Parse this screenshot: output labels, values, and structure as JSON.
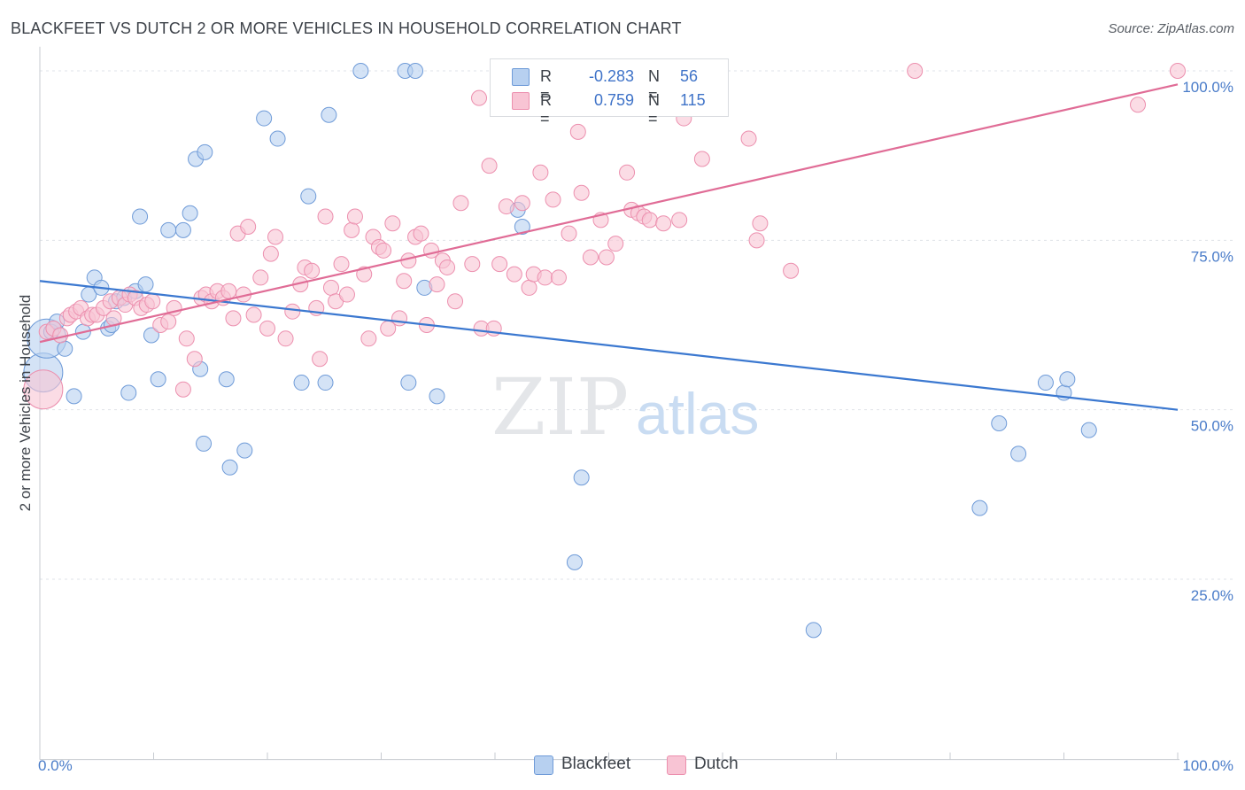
{
  "header": {
    "title": "BLACKFEET VS DUTCH 2 OR MORE VEHICLES IN HOUSEHOLD CORRELATION CHART",
    "source": "Source: ZipAtlas.com"
  },
  "watermark": {
    "zip": "ZIP",
    "atlas": "atlas"
  },
  "legend": {
    "rows": [
      {
        "r_label": "R =",
        "r_value": "-0.283",
        "n_label": "N =",
        "n_value": "56"
      },
      {
        "r_label": "R =",
        "r_value": "0.759",
        "n_label": "N =",
        "n_value": "115"
      }
    ]
  },
  "bottom_legend": {
    "items": [
      "Blackfeet",
      "Dutch"
    ]
  },
  "colors": {
    "blackfeet_fill": "#b7d0f0",
    "blackfeet_stroke": "#6f9bd8",
    "blackfeet_line": "#3b78d0",
    "dutch_fill": "#f8c4d4",
    "dutch_stroke": "#ec8fae",
    "dutch_line": "#e06c96",
    "tick_label": "#4a7cc9",
    "grid": "#dfe3e8"
  },
  "chart_data": {
    "type": "scatter",
    "title": "BLACKFEET VS DUTCH 2 OR MORE VEHICLES IN HOUSEHOLD CORRELATION CHART",
    "xlabel": "",
    "ylabel": "2 or more Vehicles in Household",
    "xlim": [
      0,
      100
    ],
    "ylim": [
      1,
      102
    ],
    "x_tick_labels": [
      "0.0%",
      "100.0%"
    ],
    "y_ticks": [
      25,
      50,
      75,
      100
    ],
    "y_tick_labels": [
      "25.0%",
      "50.0%",
      "75.0%",
      "100.0%"
    ],
    "grid": true,
    "legend_position": "top-center",
    "series": [
      {
        "name": "Blackfeet",
        "R": -0.283,
        "N": 56,
        "trend": {
          "x": [
            0,
            100
          ],
          "y": [
            69.0,
            50.0
          ]
        },
        "points": [
          [
            0.3,
            55.5,
            22
          ],
          [
            0.6,
            60.5,
            14
          ],
          [
            1.0,
            61.5,
            11
          ],
          [
            1.5,
            63.0,
            11
          ],
          [
            2.2,
            59.0,
            11
          ],
          [
            3.0,
            52.0,
            11
          ],
          [
            3.8,
            61.5,
            11
          ],
          [
            4.3,
            67.0,
            11
          ],
          [
            4.8,
            69.5,
            11
          ],
          [
            5.4,
            68.0,
            11
          ],
          [
            6.0,
            62.0,
            11
          ],
          [
            6.3,
            62.5,
            11
          ],
          [
            6.7,
            66.0,
            11
          ],
          [
            7.4,
            66.5,
            11
          ],
          [
            7.8,
            52.5,
            11
          ],
          [
            8.4,
            67.5,
            11
          ],
          [
            8.8,
            78.5,
            11
          ],
          [
            9.3,
            68.5,
            11
          ],
          [
            9.8,
            61.0,
            11
          ],
          [
            10.4,
            54.5,
            11
          ],
          [
            11.3,
            76.5,
            11
          ],
          [
            12.6,
            76.5,
            11
          ],
          [
            13.2,
            79.0,
            11
          ],
          [
            13.7,
            87.0,
            11
          ],
          [
            14.1,
            56.0,
            11
          ],
          [
            14.5,
            88.0,
            11
          ],
          [
            14.4,
            45.0,
            11
          ],
          [
            16.4,
            54.5,
            11
          ],
          [
            16.7,
            41.5,
            11
          ],
          [
            18.0,
            44.0,
            11
          ],
          [
            19.7,
            93.0,
            11
          ],
          [
            20.9,
            90.0,
            11
          ],
          [
            23.0,
            54.0,
            11
          ],
          [
            23.6,
            81.5,
            11
          ],
          [
            25.1,
            54.0,
            11
          ],
          [
            25.4,
            93.5,
            11
          ],
          [
            28.2,
            100.0,
            11
          ],
          [
            32.1,
            100.0,
            11
          ],
          [
            32.4,
            54.0,
            11
          ],
          [
            33.0,
            100.0,
            11
          ],
          [
            33.8,
            68.0,
            11
          ],
          [
            34.9,
            52.0,
            11
          ],
          [
            42.0,
            79.5,
            11
          ],
          [
            42.4,
            77.0,
            11
          ],
          [
            47.0,
            27.5,
            11
          ],
          [
            47.6,
            40.0,
            11
          ],
          [
            82.6,
            35.5,
            11
          ],
          [
            84.3,
            48.0,
            11
          ],
          [
            86.0,
            43.5,
            11
          ],
          [
            88.4,
            54.0,
            11
          ],
          [
            90.0,
            52.5,
            11
          ],
          [
            90.3,
            54.5,
            11
          ],
          [
            92.2,
            47.0,
            11
          ],
          [
            68.0,
            17.5,
            11
          ]
        ]
      },
      {
        "name": "Dutch",
        "R": 0.759,
        "N": 115,
        "trend": {
          "x": [
            0,
            100
          ],
          "y": [
            60.0,
            98.0
          ]
        },
        "points": [
          [
            0.3,
            53.0,
            22
          ],
          [
            0.6,
            61.5,
            11
          ],
          [
            1.2,
            62.0,
            11
          ],
          [
            1.8,
            61.0,
            11
          ],
          [
            2.4,
            63.5,
            11
          ],
          [
            2.7,
            64.0,
            11
          ],
          [
            3.2,
            64.5,
            11
          ],
          [
            3.6,
            65.0,
            11
          ],
          [
            4.2,
            63.5,
            11
          ],
          [
            4.6,
            64.0,
            11
          ],
          [
            5.0,
            64.0,
            11
          ],
          [
            5.6,
            65.0,
            11
          ],
          [
            6.2,
            66.0,
            11
          ],
          [
            6.5,
            63.5,
            11
          ],
          [
            7.0,
            66.5,
            11
          ],
          [
            7.5,
            65.5,
            11
          ],
          [
            7.9,
            67.0,
            11
          ],
          [
            8.4,
            66.5,
            11
          ],
          [
            8.9,
            65.0,
            11
          ],
          [
            9.4,
            65.5,
            11
          ],
          [
            9.9,
            66.0,
            11
          ],
          [
            10.6,
            62.5,
            11
          ],
          [
            11.3,
            63.0,
            11
          ],
          [
            11.8,
            65.0,
            11
          ],
          [
            12.6,
            53.0,
            11
          ],
          [
            12.9,
            60.5,
            11
          ],
          [
            13.6,
            57.5,
            11
          ],
          [
            14.2,
            66.5,
            11
          ],
          [
            14.6,
            67.0,
            11
          ],
          [
            15.1,
            66.0,
            11
          ],
          [
            15.6,
            67.5,
            11
          ],
          [
            16.1,
            66.5,
            11
          ],
          [
            16.6,
            67.5,
            11
          ],
          [
            17.0,
            63.5,
            11
          ],
          [
            17.4,
            76.0,
            11
          ],
          [
            18.3,
            77.0,
            11
          ],
          [
            17.9,
            67.0,
            11
          ],
          [
            18.8,
            64.0,
            11
          ],
          [
            19.4,
            69.5,
            11
          ],
          [
            20.0,
            62.0,
            11
          ],
          [
            20.3,
            73.0,
            11
          ],
          [
            20.7,
            75.5,
            11
          ],
          [
            21.6,
            60.5,
            11
          ],
          [
            22.2,
            64.5,
            11
          ],
          [
            22.9,
            68.5,
            11
          ],
          [
            23.3,
            71.0,
            11
          ],
          [
            23.9,
            70.5,
            11
          ],
          [
            24.3,
            65.0,
            11
          ],
          [
            24.6,
            57.5,
            11
          ],
          [
            25.1,
            78.5,
            11
          ],
          [
            25.6,
            68.0,
            11
          ],
          [
            26.0,
            66.0,
            11
          ],
          [
            26.5,
            71.5,
            11
          ],
          [
            27.0,
            67.0,
            11
          ],
          [
            27.4,
            76.5,
            11
          ],
          [
            27.7,
            78.5,
            11
          ],
          [
            28.5,
            70.0,
            11
          ],
          [
            28.9,
            60.5,
            11
          ],
          [
            29.3,
            75.5,
            11
          ],
          [
            29.8,
            74.0,
            11
          ],
          [
            30.2,
            73.5,
            11
          ],
          [
            30.6,
            62.0,
            11
          ],
          [
            31.0,
            77.5,
            11
          ],
          [
            31.6,
            63.5,
            11
          ],
          [
            32.0,
            69.0,
            11
          ],
          [
            32.4,
            72.0,
            11
          ],
          [
            33.0,
            75.5,
            11
          ],
          [
            33.5,
            76.0,
            11
          ],
          [
            34.0,
            62.5,
            11
          ],
          [
            34.4,
            73.5,
            11
          ],
          [
            34.9,
            68.5,
            11
          ],
          [
            35.4,
            72.0,
            11
          ],
          [
            35.8,
            71.0,
            11
          ],
          [
            36.5,
            66.0,
            11
          ],
          [
            37.0,
            80.5,
            11
          ],
          [
            38.0,
            71.5,
            11
          ],
          [
            38.6,
            96.0,
            11
          ],
          [
            38.8,
            62.0,
            11
          ],
          [
            39.5,
            86.0,
            11
          ],
          [
            39.9,
            62.0,
            11
          ],
          [
            40.4,
            71.5,
            11
          ],
          [
            41.0,
            80.0,
            11
          ],
          [
            41.7,
            70.0,
            11
          ],
          [
            42.4,
            80.5,
            11
          ],
          [
            43.0,
            68.0,
            11
          ],
          [
            43.4,
            70.0,
            11
          ],
          [
            44.0,
            85.0,
            11
          ],
          [
            44.4,
            69.5,
            11
          ],
          [
            45.1,
            81.0,
            11
          ],
          [
            45.6,
            69.5,
            11
          ],
          [
            46.5,
            76.0,
            11
          ],
          [
            47.3,
            91.0,
            11
          ],
          [
            47.6,
            82.0,
            11
          ],
          [
            48.4,
            72.5,
            11
          ],
          [
            49.3,
            78.0,
            11
          ],
          [
            49.8,
            72.5,
            11
          ],
          [
            50.6,
            74.5,
            11
          ],
          [
            51.6,
            85.0,
            11
          ],
          [
            52.0,
            79.5,
            11
          ],
          [
            52.6,
            79.0,
            11
          ],
          [
            53.1,
            78.5,
            11
          ],
          [
            53.6,
            78.0,
            11
          ],
          [
            54.8,
            77.5,
            11
          ],
          [
            56.2,
            78.0,
            11
          ],
          [
            56.6,
            93.0,
            11
          ],
          [
            58.2,
            87.0,
            11
          ],
          [
            62.3,
            90.0,
            11
          ],
          [
            63.0,
            75.0,
            11
          ],
          [
            63.3,
            77.5,
            11
          ],
          [
            66.0,
            70.5,
            11
          ],
          [
            76.9,
            100.0,
            11
          ],
          [
            96.5,
            95.0,
            11
          ],
          [
            100.0,
            100.0,
            11
          ]
        ]
      }
    ]
  }
}
